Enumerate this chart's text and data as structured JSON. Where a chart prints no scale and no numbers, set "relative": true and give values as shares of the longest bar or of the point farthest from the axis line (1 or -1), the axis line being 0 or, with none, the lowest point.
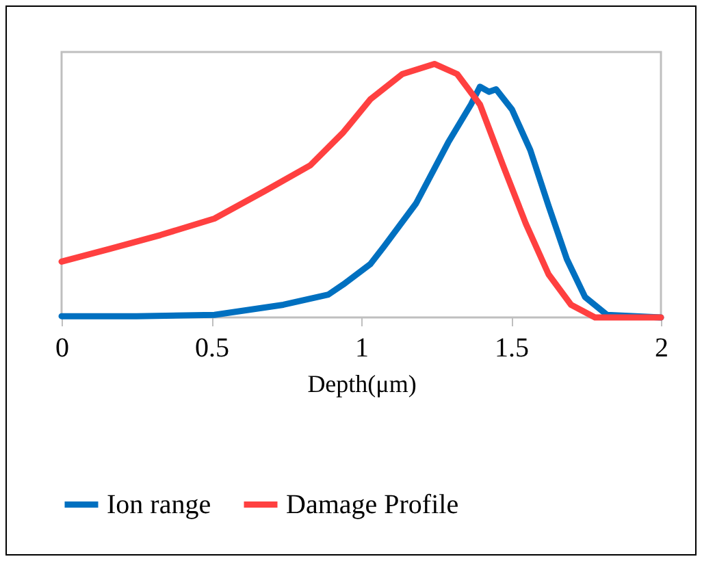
{
  "chart_data": {
    "type": "line",
    "xlabel": "Depth(μm)",
    "relative": true,
    "xlim": [
      0,
      2
    ],
    "xticks": [
      0,
      0.5,
      1,
      1.5,
      2
    ],
    "legend": "bottom",
    "grid": false,
    "marker": "none",
    "line_style": "solid",
    "series": [
      {
        "name": "Ion range",
        "color": "#0070c0",
        "x": [
          0,
          0.25,
          0.51,
          0.74,
          0.89,
          0.94,
          1.03,
          1.076,
          1.183,
          1.29,
          1.366,
          1.396,
          1.426,
          1.45,
          1.503,
          1.564,
          1.625,
          1.686,
          1.747,
          1.82,
          2
        ],
        "values": [
          0.005,
          0.005,
          0.01,
          0.05,
          0.09,
          0.13,
          0.21,
          0.28,
          0.45,
          0.69,
          0.84,
          0.91,
          0.89,
          0.9,
          0.82,
          0.66,
          0.44,
          0.23,
          0.08,
          0.01,
          0
        ]
      },
      {
        "name": "Damage Profile",
        "color": "#ff4040",
        "x": [
          0,
          0.16,
          0.33,
          0.51,
          0.68,
          0.83,
          0.94,
          1.03,
          1.137,
          1.244,
          1.32,
          1.396,
          1.473,
          1.549,
          1.625,
          1.7,
          1.78,
          2
        ],
        "values": [
          0.22,
          0.27,
          0.325,
          0.39,
          0.5,
          0.6,
          0.73,
          0.86,
          0.96,
          1,
          0.96,
          0.84,
          0.6,
          0.37,
          0.17,
          0.05,
          0,
          0
        ]
      }
    ]
  }
}
